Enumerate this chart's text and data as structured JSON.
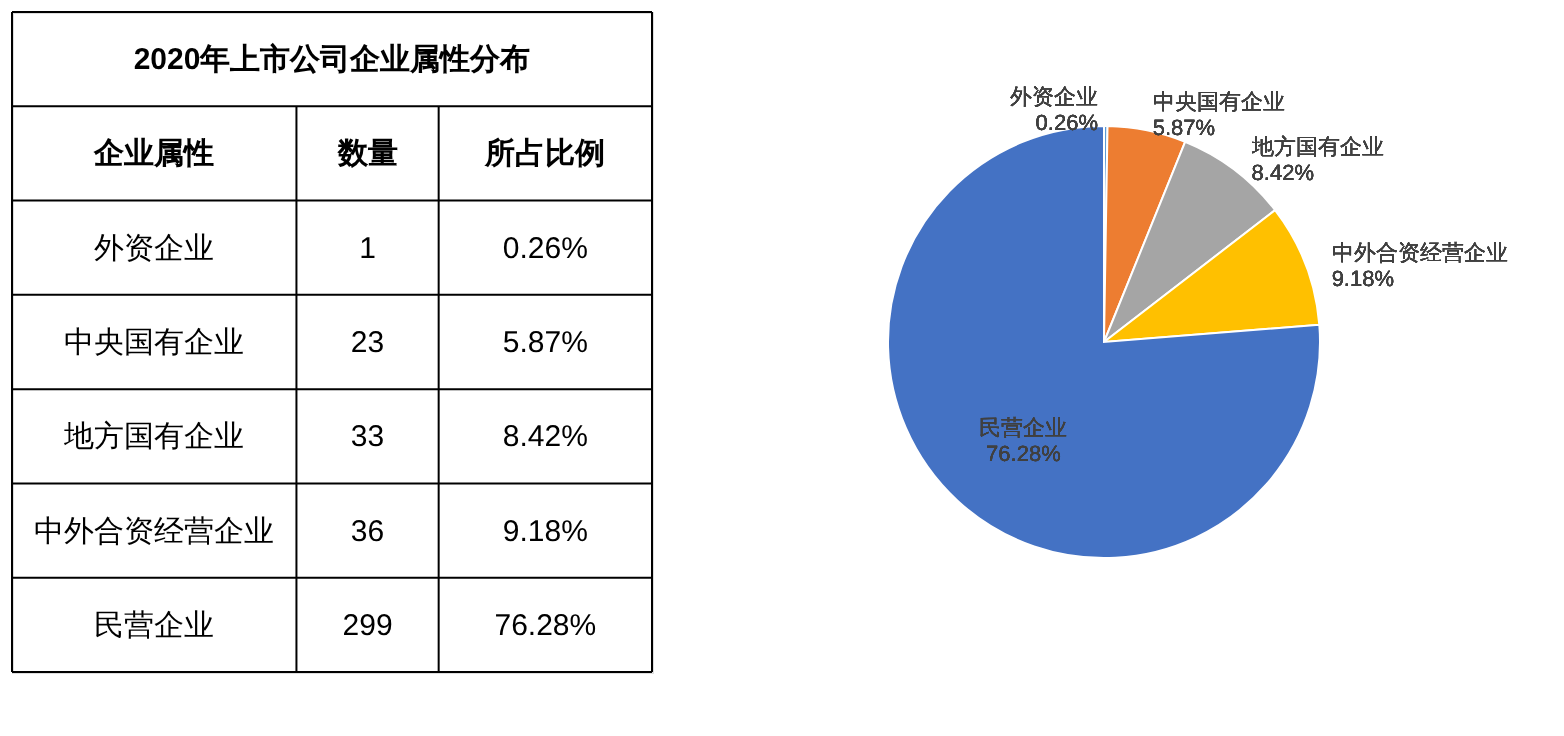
{
  "chart_data": [
    {
      "type": "other",
      "title": "2020年上市公司企业属性分布",
      "annotations": [
        "企业属性",
        "数量",
        "所占比例",
        "外资企业",
        "1",
        "0.26%",
        "中央国有企业",
        "23",
        "5.87%",
        "地方国有企业",
        "33",
        "8.42%",
        "中外合资经营企业",
        "36",
        "9.18%",
        "民营企业",
        "299",
        "76.28%"
      ]
    },
    {
      "type": "pie",
      "categories": [
        "外资企业",
        "中央国有企业",
        "地方国有企业",
        "中外合资经营企业",
        "民营企业"
      ],
      "values": [
        0.26,
        5.87,
        8.42,
        9.18,
        76.28
      ],
      "colors": [
        "#5b9bd5",
        "#ed7d31",
        "#a5a5a5",
        "#ffc000",
        "#4472c4"
      ],
      "value_labels": [
        "0.26%",
        "5.87%",
        "8.42%",
        "9.18%",
        "76.28%"
      ]
    }
  ]
}
